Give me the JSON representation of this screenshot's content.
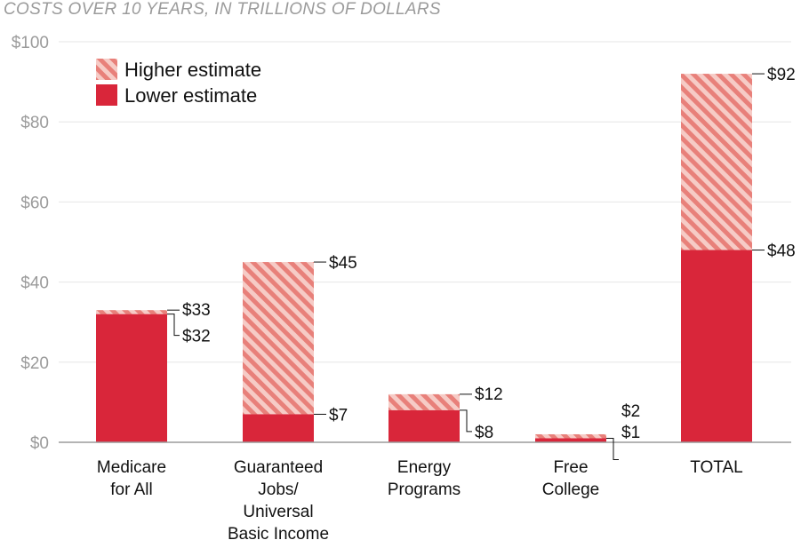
{
  "chart_data": {
    "type": "bar",
    "title": "COSTS OVER 10 YEARS, IN TRILLIONS OF DOLLARS",
    "categories": [
      [
        "Medicare",
        "for All"
      ],
      [
        "Guaranteed",
        "Jobs/",
        "Universal",
        "Basic Income"
      ],
      [
        "Energy",
        "Programs"
      ],
      [
        "Free",
        "College"
      ],
      [
        "TOTAL"
      ]
    ],
    "series": [
      {
        "name": "Lower estimate",
        "values": [
          32,
          7,
          8,
          1,
          48
        ],
        "labels": [
          "$32",
          "$7",
          "$8",
          "$1",
          "$48"
        ]
      },
      {
        "name": "Higher estimate",
        "values": [
          33,
          45,
          12,
          2,
          92
        ],
        "labels": [
          "$33",
          "$45",
          "$12",
          "$2",
          "$92"
        ]
      }
    ],
    "yticks": [
      0,
      20,
      40,
      60,
      80,
      100
    ],
    "ytick_labels": [
      "$0",
      "$20",
      "$40",
      "$60",
      "$80",
      "$100"
    ],
    "ylim": [
      0,
      100
    ],
    "xlabel": "",
    "ylabel": "",
    "grid": true,
    "legend_position": "top-left",
    "colors": {
      "lower": "#d9263a",
      "higher_stripe": "#e8807a",
      "higher_gap": "#f6cbc6",
      "grid": "#e6e6e6",
      "axis": "#9b9b9b"
    }
  }
}
